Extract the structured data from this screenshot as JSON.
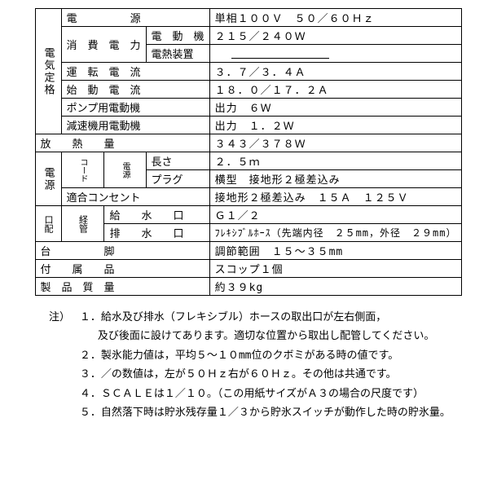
{
  "table": {
    "r1": {
      "a": "電気定格",
      "b": "電",
      "b2": "源",
      "v": "単相１００Ｖ　５０／６０Ｈｚ"
    },
    "r2": {
      "b": "消　費　電　力",
      "c": "電　動　機",
      "v": "２１５／２４０Ｗ"
    },
    "r3": {
      "c": "電熱装置",
      "v": ""
    },
    "r4": {
      "b": "運　転　電　流",
      "v": "３．７／３．４Ａ"
    },
    "r5": {
      "b": "始　動　電　流",
      "v": "１８．０／１７．２Ａ"
    },
    "r6": {
      "b": "ポンプ用電動機",
      "c": "出力　６Ｗ"
    },
    "r7": {
      "b": "減速機用電動機",
      "c": "出力　１．２Ｗ"
    },
    "r8": {
      "a": "放　　熱　　量",
      "v": "３４３／３７８Ｗ"
    },
    "r9": {
      "a": "電源",
      "b": "コード",
      "b2": "電源",
      "c": "長さ",
      "v": "２．５ｍ"
    },
    "r10": {
      "c": "プラグ",
      "v": "横型　接地形２極差込み"
    },
    "r11": {
      "b": "適合コンセント",
      "v": "接地形２極差込み　１５Ａ　１２５Ｖ"
    },
    "r12": {
      "a": "口配",
      "a2": "経管",
      "b": "給　　水　　口",
      "v": "Ｇ１／２"
    },
    "r13": {
      "b": "排　　水　　口",
      "v": "ﾌﾚｷｼﾌﾞﾙﾎｰｽ（先端内径　２５mm，外径　２９mm）"
    },
    "r14": {
      "a": "台　　　　　脚",
      "v": "調節範囲　１５～３５mm"
    },
    "r15": {
      "a": "付　　属　　品",
      "v": "スコップ１個"
    },
    "r16": {
      "a": "製　品　質　量",
      "v": "約３９kg"
    }
  },
  "notes": {
    "label": "注）",
    "items": [
      "１．給水及び排水（フレキシブル）ホースの取出口が左右側面，",
      "及び後面に設けてあります。適切な位置から取出し配管してください。",
      "２．製氷能力値は，平均５～１０mm位のクボミがある時の値です。",
      "３．／の数値は，左が５０Ｈｚ右が６０Ｈｚ。その他は共通です。",
      "４．ＳＣＡＬＥは１／１０。（この用紙サイズがＡ３の場合の尺度です）",
      "５．自然落下時は貯氷残存量１／３から貯氷スイッチが動作した時の貯氷量。"
    ]
  }
}
